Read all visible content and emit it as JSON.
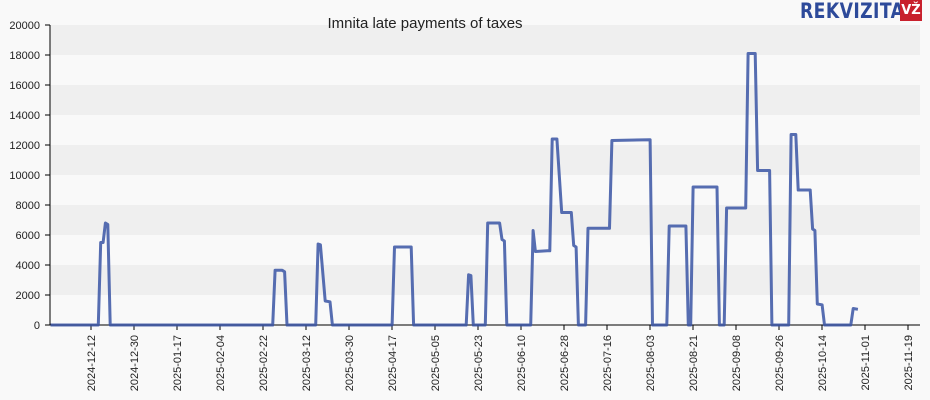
{
  "header": {
    "title": "Imnita late payments of taxes",
    "logo_text": "REKVIZITAI",
    "logo_badge": "VŽ"
  },
  "colors": {
    "line": "#3a55a4",
    "band_dark": "#efefef",
    "band_light": "#f9f9f9",
    "axis": "#000000",
    "logo_blue": "#2d4a9a",
    "logo_red": "#c8202c"
  },
  "chart_data": {
    "type": "line",
    "title": "Imnita late payments of taxes",
    "xlabel": "",
    "ylabel": "",
    "ylim": [
      0,
      20000
    ],
    "yticks": [
      0,
      2000,
      4000,
      6000,
      8000,
      10000,
      12000,
      14000,
      16000,
      18000,
      20000
    ],
    "xticks": [
      "2024-12-12",
      "2024-12-30",
      "2025-01-17",
      "2025-02-04",
      "2025-02-22",
      "2025-03-12",
      "2025-03-30",
      "2025-04-17",
      "2025-05-05",
      "2025-05-23",
      "2025-06-10",
      "2025-06-28",
      "2025-07-16",
      "2025-08-03",
      "2025-08-21",
      "2025-09-08",
      "2025-09-26",
      "2025-10-14",
      "2025-11-01",
      "2025-11-19"
    ],
    "grid": "alternating horizontal bands",
    "legend": "none",
    "series": [
      {
        "name": "Late payments of taxes",
        "points": [
          [
            "2024-11-25",
            0
          ],
          [
            "2024-12-15",
            0
          ],
          [
            "2024-12-16",
            5500
          ],
          [
            "2024-12-17",
            5500
          ],
          [
            "2024-12-18",
            6800
          ],
          [
            "2024-12-19",
            6700
          ],
          [
            "2024-12-20",
            0
          ],
          [
            "2024-12-31",
            0
          ],
          [
            "2025-02-26",
            0
          ],
          [
            "2025-02-27",
            3650
          ],
          [
            "2025-03-02",
            3650
          ],
          [
            "2025-03-03",
            3550
          ],
          [
            "2025-03-04",
            0
          ],
          [
            "2025-03-16",
            0
          ],
          [
            "2025-03-17",
            5400
          ],
          [
            "2025-03-18",
            5350
          ],
          [
            "2025-03-20",
            1600
          ],
          [
            "2025-03-22",
            1550
          ],
          [
            "2025-03-23",
            0
          ],
          [
            "2025-04-17",
            0
          ],
          [
            "2025-04-18",
            5200
          ],
          [
            "2025-04-25",
            5200
          ],
          [
            "2025-04-26",
            0
          ],
          [
            "2025-05-18",
            0
          ],
          [
            "2025-05-19",
            3350
          ],
          [
            "2025-05-20",
            3300
          ],
          [
            "2025-05-21",
            0
          ],
          [
            "2025-05-26",
            0
          ],
          [
            "2025-05-27",
            6800
          ],
          [
            "2025-06-01",
            6800
          ],
          [
            "2025-06-02",
            5700
          ],
          [
            "2025-06-03",
            5600
          ],
          [
            "2025-06-04",
            0
          ],
          [
            "2025-06-14",
            0
          ],
          [
            "2025-06-15",
            6300
          ],
          [
            "2025-06-16",
            4900
          ],
          [
            "2025-06-21",
            4950
          ],
          [
            "2025-06-22",
            4950
          ],
          [
            "2025-06-23",
            12400
          ],
          [
            "2025-06-25",
            12400
          ],
          [
            "2025-06-27",
            7500
          ],
          [
            "2025-07-01",
            7500
          ],
          [
            "2025-07-02",
            5300
          ],
          [
            "2025-07-03",
            5200
          ],
          [
            "2025-07-04",
            0
          ],
          [
            "2025-07-07",
            0
          ],
          [
            "2025-07-08",
            6450
          ],
          [
            "2025-07-17",
            6450
          ],
          [
            "2025-07-18",
            12300
          ],
          [
            "2025-08-03",
            12350
          ],
          [
            "2025-08-04",
            0
          ],
          [
            "2025-08-10",
            0
          ],
          [
            "2025-08-11",
            6600
          ],
          [
            "2025-08-18",
            6600
          ],
          [
            "2025-08-19",
            0
          ],
          [
            "2025-08-20",
            0
          ],
          [
            "2025-08-21",
            9200
          ],
          [
            "2025-08-31",
            9200
          ],
          [
            "2025-09-01",
            0
          ],
          [
            "2025-09-03",
            0
          ],
          [
            "2025-09-04",
            7800
          ],
          [
            "2025-09-12",
            7800
          ],
          [
            "2025-09-13",
            18100
          ],
          [
            "2025-09-16",
            18100
          ],
          [
            "2025-09-17",
            10300
          ],
          [
            "2025-09-22",
            10300
          ],
          [
            "2025-09-23",
            0
          ],
          [
            "2025-09-30",
            0
          ],
          [
            "2025-10-01",
            12700
          ],
          [
            "2025-10-03",
            12700
          ],
          [
            "2025-10-04",
            9000
          ],
          [
            "2025-10-09",
            9000
          ],
          [
            "2025-10-10",
            6400
          ],
          [
            "2025-10-11",
            6300
          ],
          [
            "2025-10-12",
            1400
          ],
          [
            "2025-10-14",
            1350
          ],
          [
            "2025-10-15",
            0
          ],
          [
            "2025-10-26",
            0
          ],
          [
            "2025-10-27",
            1100
          ],
          [
            "2025-10-29",
            1050
          ]
        ]
      }
    ]
  }
}
